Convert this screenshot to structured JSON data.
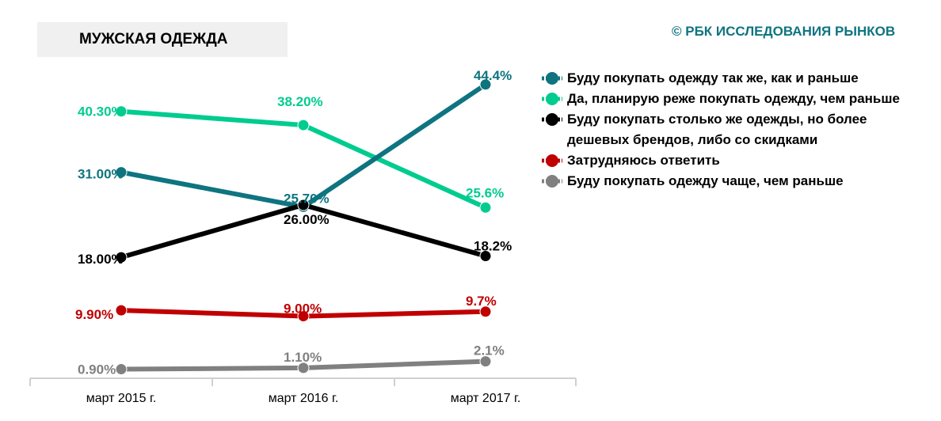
{
  "header": {
    "title": "МУЖСКАЯ ОДЕЖДА",
    "brand": "© РБК ИССЛЕДОВАНИЯ РЫНКОВ"
  },
  "chart_data": {
    "type": "line",
    "title": "МУЖСКАЯ ОДЕЖДА",
    "categories": [
      "март 2015 г.",
      "март 2016 г.",
      "март 2017 г."
    ],
    "ylim": [
      0,
      50
    ],
    "grid": false,
    "legend_placement": "right",
    "series": [
      {
        "name": "Буду покупать одежду так же, как и раньше",
        "color": "#0e7480",
        "values": [
          31.0,
          25.7,
          44.4
        ],
        "labels": [
          "31.00%",
          "25.70%",
          "44.4%"
        ]
      },
      {
        "name": "Да, планирую реже покупать одежду, чем раньше",
        "color": "#00cc8f",
        "values": [
          40.3,
          38.2,
          25.6
        ],
        "labels": [
          "40.30%",
          "38.20%",
          "25.6%"
        ]
      },
      {
        "name": "Буду покупать столько же одежды, но более дешевых брендов, либо со скидками",
        "color": "#000000",
        "values": [
          18.0,
          26.0,
          18.2
        ],
        "labels": [
          "18.00%",
          "26.00%",
          "18.2%"
        ]
      },
      {
        "name": "Затрудняюсь ответить",
        "color": "#c00000",
        "values": [
          9.9,
          9.0,
          9.7
        ],
        "labels": [
          "9.90%",
          "9.00%",
          "9.7%"
        ]
      },
      {
        "name": "Буду покупать одежду чаще, чем раньше",
        "color": "#808080",
        "values": [
          0.9,
          1.1,
          2.1
        ],
        "labels": [
          "0.90%",
          "1.10%",
          "2.1%"
        ]
      }
    ]
  }
}
